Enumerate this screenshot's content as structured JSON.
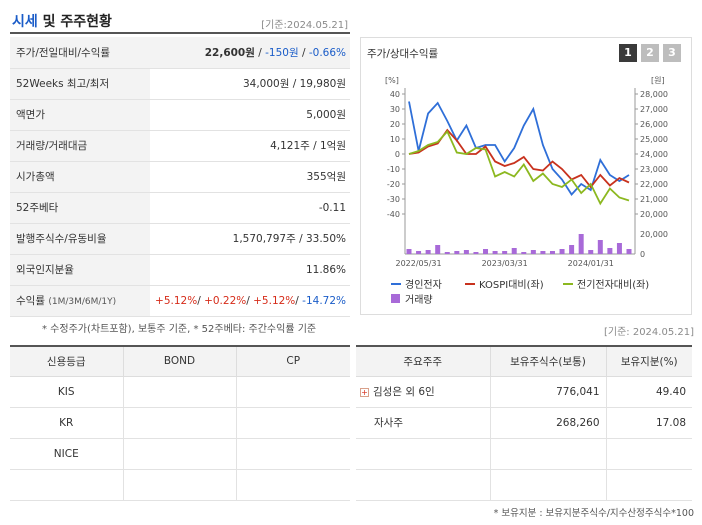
{
  "header": {
    "title_accent": "시세",
    "title_rest": " 및 주주현황",
    "date": "[기준:2024.05.21]"
  },
  "info_rows": {
    "price": {
      "label": "주가/전일대비/수익률",
      "price": "22,600원",
      "sep1": " / ",
      "change": "-150원",
      "sep2": " / ",
      "rate": "-0.66%"
    },
    "week52": {
      "label": "52Weeks 최고/최저",
      "value": "34,000원 / 19,980원"
    },
    "par": {
      "label": "액면가",
      "value": "5,000원"
    },
    "volume": {
      "label": "거래량/거래대금",
      "value": "4,121주 / 1억원"
    },
    "mcap": {
      "label": "시가총액",
      "value": "355억원"
    },
    "beta": {
      "label": "52주베타",
      "value": "-0.11"
    },
    "shares": {
      "label": "발행주식수/유동비율",
      "value": "1,570,797주 / 33.50%"
    },
    "foreign": {
      "label": "외국인지분율",
      "value": "11.86%"
    },
    "returns": {
      "label": "수익률",
      "label_sub": "(1M/3M/6M/1Y)",
      "r1": "+5.12%",
      "r2": "+0.22%",
      "r3": "+5.12%",
      "r4": "-14.72%",
      "sep": "/ "
    }
  },
  "chart": {
    "title": "주가/상대수익률",
    "buttons": [
      "1",
      "2",
      "3"
    ],
    "left_unit": "[%]",
    "right_unit": "[원]",
    "left_ticks": [
      "40",
      "30",
      "20",
      "10",
      "0",
      "-10",
      "-20",
      "-30",
      "-40"
    ],
    "right_ticks": [
      "28,000",
      "27,000",
      "26,000",
      "25,000",
      "24,000",
      "23,000",
      "22,000",
      "21,000",
      "20,000"
    ],
    "vol_ticks": [
      "20,000",
      "0"
    ],
    "x_ticks": [
      "2022/05/31",
      "2023/03/31",
      "2024/01/31"
    ],
    "legend": {
      "s1": "경인전자",
      "s2": "KOSPI대비(좌)",
      "s3": "전기전자대비(좌)",
      "s4": "거래량"
    },
    "colors": {
      "s1": "#2f6fd8",
      "s2": "#c8321e",
      "s3": "#8cb820",
      "s4": "#a86ad8"
    }
  },
  "chart_data": {
    "type": "line",
    "x_labels": [
      "2022/05/31",
      "2023/03/31",
      "2024/01/31"
    ],
    "ylim_left": [
      -40,
      40
    ],
    "ylim_right": [
      20000,
      28000
    ],
    "series": [
      {
        "name": "경인전자",
        "axis": "right",
        "values": [
          27500,
          24200,
          26700,
          27400,
          26200,
          24900,
          25900,
          24400,
          24600,
          24600,
          23500,
          24400,
          25900,
          27000,
          24600,
          23000,
          22300,
          21300,
          22000,
          21600,
          23600,
          22600,
          22200,
          22600
        ]
      },
      {
        "name": "KOSPI대비(좌)",
        "axis": "left",
        "values": [
          0,
          1,
          5,
          7,
          16,
          9,
          0,
          0,
          5,
          -5,
          -8,
          -6,
          -2,
          -10,
          -11,
          -5,
          -10,
          -17,
          -14,
          -22,
          -14,
          -21,
          -16,
          -19
        ]
      },
      {
        "name": "전기전자대비(좌)",
        "axis": "left",
        "values": [
          0,
          2,
          6,
          8,
          15,
          1,
          0,
          4,
          3,
          -15,
          -12,
          -15,
          -7,
          -18,
          -13,
          -20,
          -22,
          -17,
          -26,
          -20,
          -33,
          -23,
          -29,
          -31
        ]
      },
      {
        "name": "거래량",
        "axis": "volume",
        "values": [
          5000,
          3000,
          4000,
          9000,
          2000,
          3000,
          4000,
          2000,
          5000,
          3000,
          3000,
          6000,
          2000,
          4000,
          3000,
          3000,
          5000,
          9000,
          20000,
          4000,
          14000,
          6000,
          11000,
          5000
        ]
      }
    ],
    "volume_ylim": [
      0,
      20000
    ]
  },
  "notes": {
    "footnote1": "* 수정주가(차트포함), 보통주 기준, * 52주베타: 주간수익률 기준",
    "date2": "[기준: 2024.05.21]",
    "footnote2": "* 보유지분 : 보유지분주식수/지수산정주식수*100"
  },
  "credit_table": {
    "headers": [
      "신용등급",
      "BOND",
      "CP"
    ],
    "rows": [
      [
        "KIS",
        "",
        ""
      ],
      [
        "KR",
        "",
        ""
      ],
      [
        "NICE",
        "",
        ""
      ],
      [
        "",
        "",
        ""
      ]
    ]
  },
  "holders_table": {
    "headers": [
      "주요주주",
      "보유주식수(보통)",
      "보유지분(%)"
    ],
    "rows": [
      {
        "name": "김성은 외 6인",
        "shares": "776,041",
        "pct": "49.40",
        "icon": "plus-icon"
      },
      {
        "name": "자사주",
        "shares": "268,260",
        "pct": "17.08"
      },
      {
        "name": "",
        "shares": "",
        "pct": ""
      },
      {
        "name": "",
        "shares": "",
        "pct": ""
      }
    ]
  }
}
